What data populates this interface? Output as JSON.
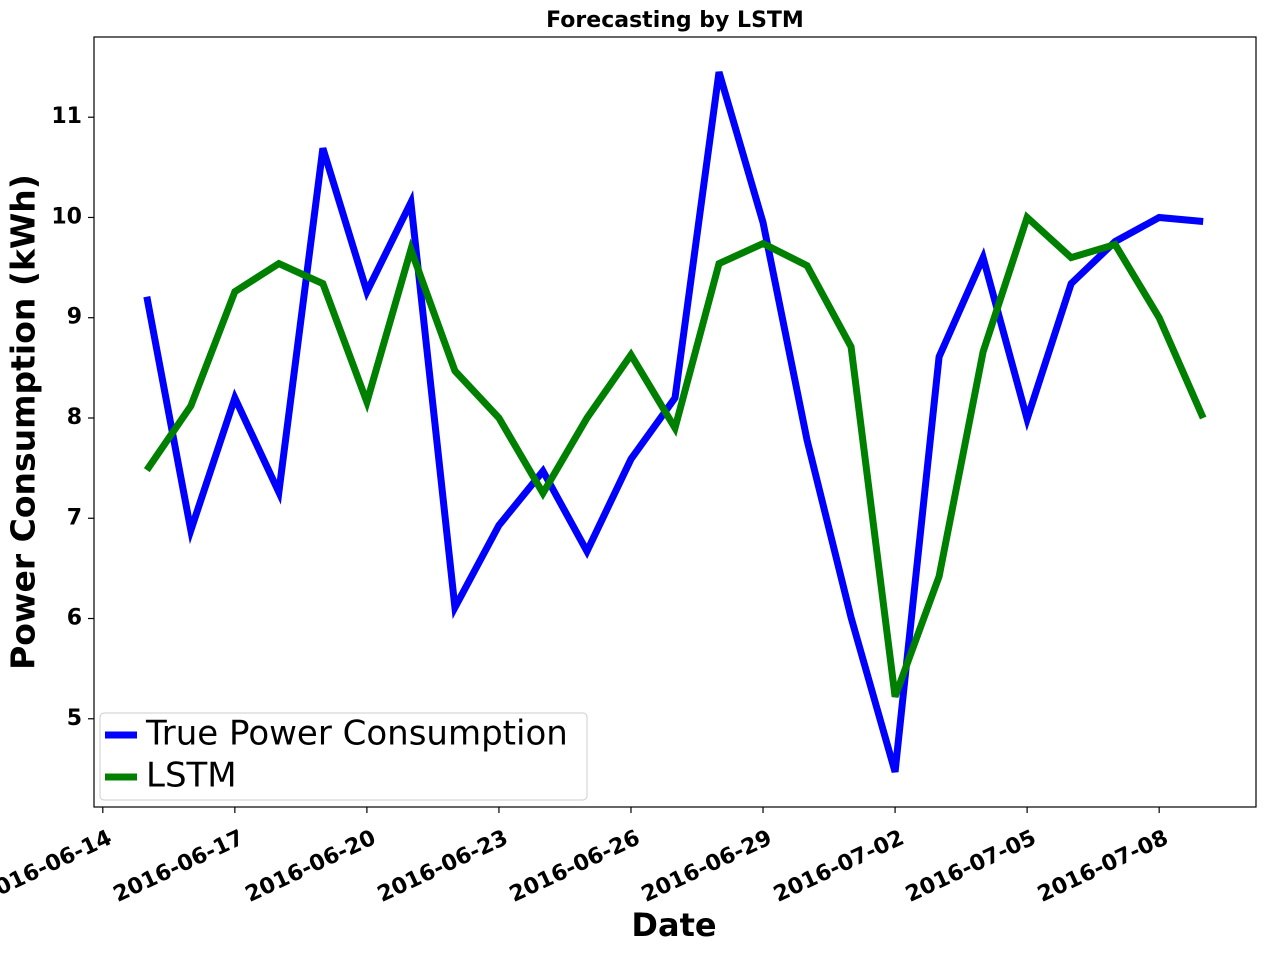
{
  "chart_data": {
    "type": "line",
    "title": "Forecasting by LSTM",
    "x_label": "Date",
    "y_label": "Power Consumption (kWh)",
    "x": [
      "2016-06-15",
      "2016-06-16",
      "2016-06-17",
      "2016-06-18",
      "2016-06-19",
      "2016-06-20",
      "2016-06-21",
      "2016-06-22",
      "2016-06-23",
      "2016-06-24",
      "2016-06-25",
      "2016-06-26",
      "2016-06-27",
      "2016-06-28",
      "2016-06-29",
      "2016-06-30",
      "2016-07-01",
      "2016-07-02",
      "2016-07-03",
      "2016-07-04",
      "2016-07-05",
      "2016-07-06",
      "2016-07-07",
      "2016-07-08",
      "2016-07-09"
    ],
    "series": [
      {
        "name": "True Power Consumption",
        "color": "#0000ff",
        "values": [
          9.21,
          6.88,
          8.2,
          7.26,
          10.69,
          9.26,
          10.15,
          6.11,
          6.93,
          7.47,
          6.67,
          7.59,
          8.2,
          11.45,
          9.95,
          7.78,
          6.01,
          4.47,
          8.61,
          9.6,
          7.99,
          9.34,
          9.76,
          10.0,
          9.96
        ]
      },
      {
        "name": "LSTM",
        "color": "#008000",
        "values": [
          7.48,
          8.12,
          9.26,
          9.54,
          9.34,
          8.16,
          9.68,
          8.47,
          8.0,
          7.25,
          8.0,
          8.63,
          7.9,
          9.54,
          9.74,
          9.52,
          8.71,
          5.22,
          6.42,
          8.66,
          10.0,
          9.6,
          9.73,
          9.0,
          8.0
        ]
      }
    ],
    "xlim": [
      "2016-06-13T19:12",
      "2016-07-10T04:48"
    ],
    "xticks": [
      "2016-06-14",
      "2016-06-17",
      "2016-06-20",
      "2016-06-23",
      "2016-06-26",
      "2016-06-29",
      "2016-07-02",
      "2016-07-05",
      "2016-07-08"
    ],
    "ylim": [
      4.12,
      11.8
    ],
    "yticks": [
      5,
      6,
      7,
      8,
      9,
      10,
      11
    ],
    "grid": false,
    "legend": "lower left"
  }
}
